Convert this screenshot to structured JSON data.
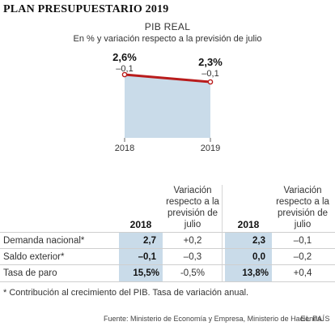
{
  "header": {
    "title": "PLAN PRESUPUESTARIO 2019"
  },
  "chart_data": {
    "type": "area",
    "title": "PIB REAL",
    "subtitle": "En % y variación respecto a la previsión de julio",
    "x": [
      "2018",
      "2019"
    ],
    "series": [
      {
        "values": [
          2.6,
          2.3
        ]
      }
    ],
    "labels": [
      "2,6%",
      "2,3%"
    ],
    "variation_labels": [
      "–0,1",
      "–0,1"
    ],
    "colors": {
      "line": "#b91c1c",
      "fill": "#c9dbe9",
      "marker_fill": "#ffffff"
    },
    "grid": false
  },
  "table": {
    "col_headers": [
      "",
      "2018",
      "Variación respecto a la previsión de julio",
      "2018",
      "Variación respecto a la previsión de julio"
    ],
    "rows": [
      {
        "label": "Demanda nacional*",
        "v1": "2,7",
        "d1": "+0,2",
        "v2": "2,3",
        "d2": "–0,1"
      },
      {
        "label": "Saldo exterior*",
        "v1": "–0,1",
        "d1": "–0,3",
        "v2": "0,0",
        "d2": "–0,2"
      },
      {
        "label": "Tasa de paro",
        "v1": "15,5%",
        "d1": "-0,5%",
        "v2": "13,8%",
        "d2": "+0,4"
      }
    ]
  },
  "footnote": "* Contribución al crecimiento del PIB. Tasa de variación anual.",
  "source": "Fuente: Ministerio de Economía y Empresa, Ministerio de Hacienda.",
  "brand": "EL PAÍS"
}
